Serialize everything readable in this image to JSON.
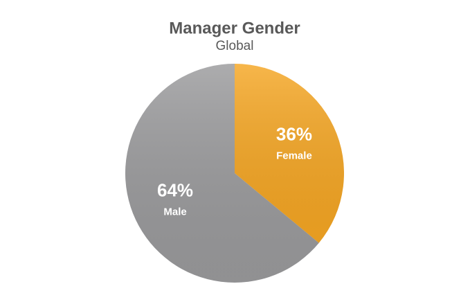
{
  "chart_data": {
    "type": "pie",
    "title": "Manager Gender",
    "subtitle": "Global",
    "categories": [
      "Female",
      "Male"
    ],
    "values": [
      36,
      64
    ],
    "value_labels": [
      "36%",
      "64%"
    ],
    "colors": [
      "#f5a623",
      "#9a9a9c"
    ]
  }
}
